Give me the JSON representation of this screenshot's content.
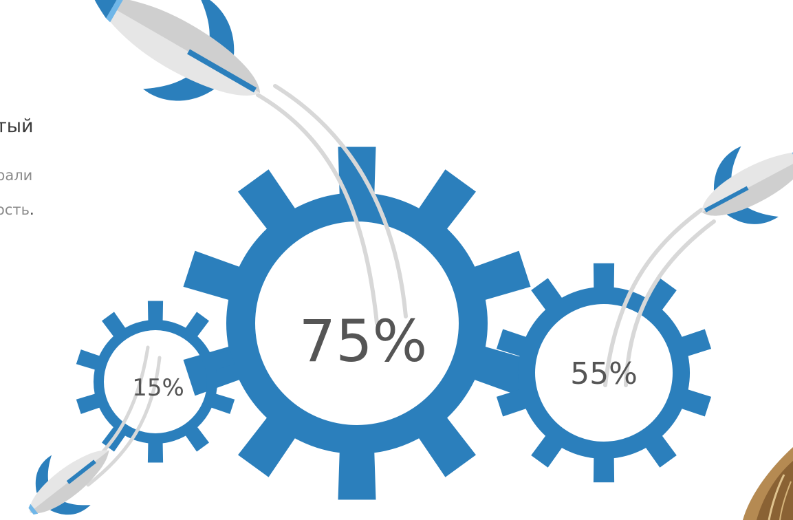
{
  "text_block": {
    "heading": "тый",
    "line1": "рали",
    "line2": "ость",
    "line2_end": "."
  },
  "gears": {
    "large": {
      "value": "75%"
    },
    "medium": {
      "value": "55%"
    },
    "small": {
      "value": "15%"
    }
  },
  "colors": {
    "gear": "#2b7fbc",
    "rocket_body": "#e6e6e6",
    "rocket_shade": "#cfcfcf",
    "rocket_fin": "#2b7fbc",
    "rocket_nose_stripe": "#6fb6e8",
    "trail": "#d8d8d8",
    "value_text": "#555555"
  }
}
